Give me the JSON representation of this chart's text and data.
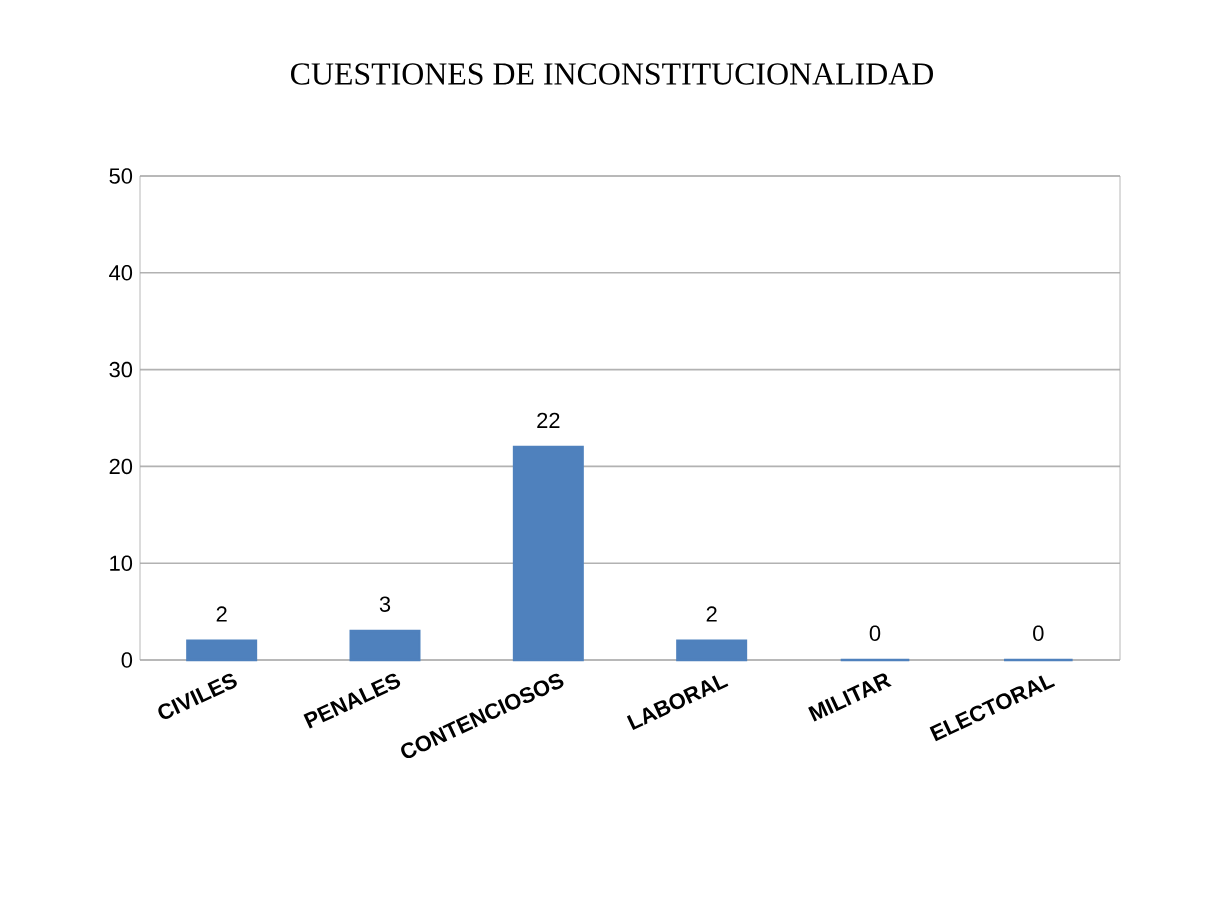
{
  "chart_data": {
    "type": "bar",
    "title": "CUESTIONES DE INCONSTITUCIONALIDAD",
    "categories": [
      "CIVILES",
      "PENALES",
      "CONTENCIOSOS",
      "LABORAL",
      "MILITAR",
      "ELECTORAL"
    ],
    "values": [
      2,
      3,
      22,
      2,
      0,
      0
    ],
    "color": "#4f81bd",
    "ylim": [
      0,
      50
    ],
    "yticks": [
      0,
      10,
      20,
      30,
      40,
      50
    ],
    "grid": true,
    "data_labels": true
  }
}
